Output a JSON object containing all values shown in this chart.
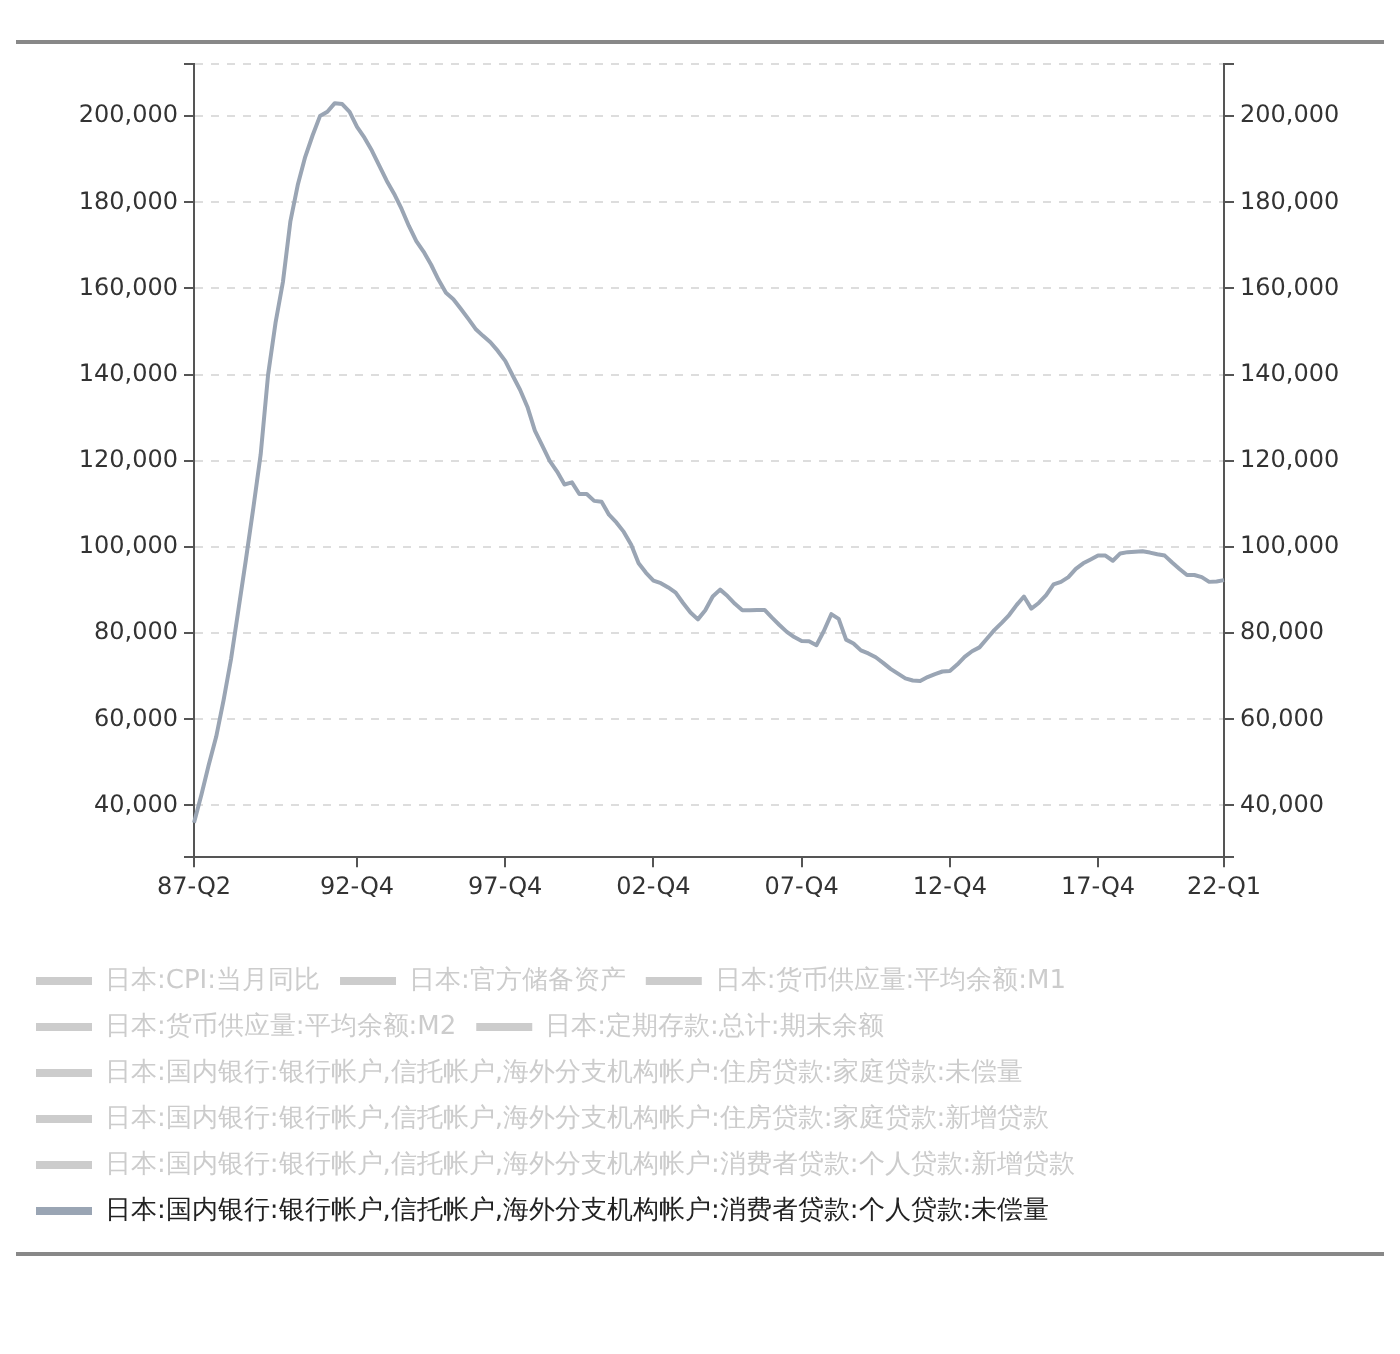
{
  "chart_data": {
    "type": "line",
    "categories": [
      "87-Q2",
      null,
      null,
      null,
      null,
      null,
      null,
      null,
      null,
      null,
      null,
      null,
      null,
      null,
      null,
      null,
      null,
      null,
      null,
      null,
      null,
      null,
      "92-Q4",
      null,
      null,
      null,
      null,
      null,
      null,
      null,
      null,
      null,
      null,
      null,
      null,
      null,
      null,
      null,
      null,
      null,
      null,
      null,
      "97-Q4",
      null,
      null,
      null,
      null,
      null,
      null,
      null,
      null,
      null,
      null,
      null,
      null,
      null,
      null,
      null,
      null,
      null,
      null,
      null,
      "02-Q4",
      null,
      null,
      null,
      null,
      null,
      null,
      null,
      null,
      null,
      null,
      null,
      null,
      null,
      null,
      null,
      null,
      null,
      null,
      null,
      "07-Q4",
      null,
      null,
      null,
      null,
      null,
      null,
      null,
      null,
      null,
      null,
      null,
      null,
      null,
      null,
      null,
      null,
      null,
      null,
      null,
      "12-Q4",
      null,
      null,
      null,
      null,
      null,
      null,
      null,
      null,
      null,
      null,
      null,
      null,
      null,
      null,
      null,
      null,
      null,
      null,
      null,
      "17-Q4",
      null,
      null,
      null,
      null,
      null,
      null,
      null,
      null,
      null,
      null,
      null,
      null,
      null,
      null,
      null,
      null,
      "22-Q1"
    ],
    "ylim": [
      28000,
      212000
    ],
    "yticks": [
      {
        "value": 40000,
        "label": "40,000"
      },
      {
        "value": 60000,
        "label": "60,000"
      },
      {
        "value": 80000,
        "label": "80,000"
      },
      {
        "value": 100000,
        "label": "100,000"
      },
      {
        "value": 120000,
        "label": "120,000"
      },
      {
        "value": 140000,
        "label": "140,000"
      },
      {
        "value": 160000,
        "label": "160,000"
      },
      {
        "value": 180000,
        "label": "180,000"
      },
      {
        "value": 200000,
        "label": "200,000"
      }
    ],
    "y2lim": [
      28000,
      212000
    ],
    "y2ticks": [
      {
        "value": 40000,
        "label": "40,000"
      },
      {
        "value": 60000,
        "label": "60,000"
      },
      {
        "value": 80000,
        "label": "80,000"
      },
      {
        "value": 100000,
        "label": "100,000"
      },
      {
        "value": 120000,
        "label": "120,000"
      },
      {
        "value": 140000,
        "label": "140,000"
      },
      {
        "value": 160000,
        "label": "160,000"
      },
      {
        "value": 180000,
        "label": "180,000"
      },
      {
        "value": 200000,
        "label": "200,000"
      }
    ],
    "grid": "y",
    "legend": "bottom",
    "marker": "none",
    "line_style": "solid",
    "series": [
      {
        "name": "日本:CPI:当月同比",
        "color": "#cccccc",
        "values": [
          null,
          null,
          null,
          null,
          null,
          null,
          null,
          null,
          null,
          null,
          null,
          null,
          null,
          null,
          null,
          null,
          null,
          null,
          null,
          null,
          null,
          null,
          null,
          null,
          null,
          null,
          null,
          null,
          null,
          null,
          null,
          null,
          null,
          null,
          null,
          null,
          null,
          null,
          null,
          null,
          null,
          null,
          null,
          null,
          null,
          null,
          null,
          null,
          null,
          null,
          null,
          null,
          null,
          null,
          null,
          null,
          null,
          null,
          null,
          null,
          null,
          null,
          null,
          null,
          null,
          null,
          null,
          null,
          null,
          null,
          null,
          null,
          null,
          null,
          null,
          null,
          null,
          null,
          null,
          null,
          null,
          null,
          null,
          null,
          null,
          null,
          null,
          null,
          null,
          null,
          null,
          null,
          null,
          null,
          null,
          null,
          null,
          null,
          null,
          null,
          null,
          null,
          null,
          null,
          null,
          null,
          null,
          null,
          null,
          null,
          null,
          null,
          null,
          null,
          null,
          null,
          null,
          null,
          null,
          null,
          null,
          null,
          null,
          null,
          null,
          null,
          null,
          null,
          null,
          null,
          null,
          null,
          null,
          null,
          null,
          null,
          null,
          null,
          null,
          null
        ]
      },
      {
        "name": "日本:官方储备资产",
        "color": "#cccccc",
        "values": [
          null,
          null,
          null,
          null,
          null,
          null,
          null,
          null,
          null,
          null,
          null,
          null,
          null,
          null,
          null,
          null,
          null,
          null,
          null,
          null,
          null,
          null,
          null,
          null,
          null,
          null,
          null,
          null,
          null,
          null,
          null,
          null,
          null,
          null,
          null,
          null,
          null,
          null,
          null,
          null,
          null,
          null,
          null,
          null,
          null,
          null,
          null,
          null,
          null,
          null,
          null,
          null,
          null,
          null,
          null,
          null,
          null,
          null,
          null,
          null,
          null,
          null,
          null,
          null,
          null,
          null,
          null,
          null,
          null,
          null,
          null,
          null,
          null,
          null,
          null,
          null,
          null,
          null,
          null,
          null,
          null,
          null,
          null,
          null,
          null,
          null,
          null,
          null,
          null,
          null,
          null,
          null,
          null,
          null,
          null,
          null,
          null,
          null,
          null,
          null,
          null,
          null,
          null,
          null,
          null,
          null,
          null,
          null,
          null,
          null,
          null,
          null,
          null,
          null,
          null,
          null,
          null,
          null,
          null,
          null,
          null,
          null,
          null,
          null,
          null,
          null,
          null,
          null,
          null,
          null,
          null,
          null,
          null,
          null,
          null,
          null,
          null,
          null,
          null,
          null
        ]
      },
      {
        "name": "日本:货币供应量:平均余额:M1",
        "color": "#cccccc",
        "values": [
          null,
          null,
          null,
          null,
          null,
          null,
          null,
          null,
          null,
          null,
          null,
          null,
          null,
          null,
          null,
          null,
          null,
          null,
          null,
          null,
          null,
          null,
          null,
          null,
          null,
          null,
          null,
          null,
          null,
          null,
          null,
          null,
          null,
          null,
          null,
          null,
          null,
          null,
          null,
          null,
          null,
          null,
          null,
          null,
          null,
          null,
          null,
          null,
          null,
          null,
          null,
          null,
          null,
          null,
          null,
          null,
          null,
          null,
          null,
          null,
          null,
          null,
          null,
          null,
          null,
          null,
          null,
          null,
          null,
          null,
          null,
          null,
          null,
          null,
          null,
          null,
          null,
          null,
          null,
          null,
          null,
          null,
          null,
          null,
          null,
          null,
          null,
          null,
          null,
          null,
          null,
          null,
          null,
          null,
          null,
          null,
          null,
          null,
          null,
          null,
          null,
          null,
          null,
          null,
          null,
          null,
          null,
          null,
          null,
          null,
          null,
          null,
          null,
          null,
          null,
          null,
          null,
          null,
          null,
          null,
          null,
          null,
          null,
          null,
          null,
          null,
          null,
          null,
          null,
          null,
          null,
          null,
          null,
          null,
          null,
          null,
          null,
          null,
          null,
          null
        ]
      },
      {
        "name": "日本:货币供应量:平均余额:M2",
        "color": "#cccccc",
        "values": [
          null,
          null,
          null,
          null,
          null,
          null,
          null,
          null,
          null,
          null,
          null,
          null,
          null,
          null,
          null,
          null,
          null,
          null,
          null,
          null,
          null,
          null,
          null,
          null,
          null,
          null,
          null,
          null,
          null,
          null,
          null,
          null,
          null,
          null,
          null,
          null,
          null,
          null,
          null,
          null,
          null,
          null,
          null,
          null,
          null,
          null,
          null,
          null,
          null,
          null,
          null,
          null,
          null,
          null,
          null,
          null,
          null,
          null,
          null,
          null,
          null,
          null,
          null,
          null,
          null,
          null,
          null,
          null,
          null,
          null,
          null,
          null,
          null,
          null,
          null,
          null,
          null,
          null,
          null,
          null,
          null,
          null,
          null,
          null,
          null,
          null,
          null,
          null,
          null,
          null,
          null,
          null,
          null,
          null,
          null,
          null,
          null,
          null,
          null,
          null,
          null,
          null,
          null,
          null,
          null,
          null,
          null,
          null,
          null,
          null,
          null,
          null,
          null,
          null,
          null,
          null,
          null,
          null,
          null,
          null,
          null,
          null,
          null,
          null,
          null,
          null,
          null,
          null,
          null,
          null,
          null,
          null,
          null,
          null,
          null,
          null,
          null,
          null,
          null,
          null
        ]
      },
      {
        "name": "日本:定期存款:总计:期末余额",
        "color": "#cccccc",
        "values": [
          null,
          null,
          null,
          null,
          null,
          null,
          null,
          null,
          null,
          null,
          null,
          null,
          null,
          null,
          null,
          null,
          null,
          null,
          null,
          null,
          null,
          null,
          null,
          null,
          null,
          null,
          null,
          null,
          null,
          null,
          null,
          null,
          null,
          null,
          null,
          null,
          null,
          null,
          null,
          null,
          null,
          null,
          null,
          null,
          null,
          null,
          null,
          null,
          null,
          null,
          null,
          null,
          null,
          null,
          null,
          null,
          null,
          null,
          null,
          null,
          null,
          null,
          null,
          null,
          null,
          null,
          null,
          null,
          null,
          null,
          null,
          null,
          null,
          null,
          null,
          null,
          null,
          null,
          null,
          null,
          null,
          null,
          null,
          null,
          null,
          null,
          null,
          null,
          null,
          null,
          null,
          null,
          null,
          null,
          null,
          null,
          null,
          null,
          null,
          null,
          null,
          null,
          null,
          null,
          null,
          null,
          null,
          null,
          null,
          null,
          null,
          null,
          null,
          null,
          null,
          null,
          null,
          null,
          null,
          null,
          null,
          null,
          null,
          null,
          null,
          null,
          null,
          null,
          null,
          null,
          null,
          null,
          null,
          null,
          null,
          null,
          null,
          null,
          null,
          null
        ]
      },
      {
        "name": "日本:国内银行:银行帐户,信托帐户,海外分支机构帐户:住房贷款:家庭贷款:未偿量",
        "color": "#cccccc",
        "values": [
          null,
          null,
          null,
          null,
          null,
          null,
          null,
          null,
          null,
          null,
          null,
          null,
          null,
          null,
          null,
          null,
          null,
          null,
          null,
          null,
          null,
          null,
          null,
          null,
          null,
          null,
          null,
          null,
          null,
          null,
          null,
          null,
          null,
          null,
          null,
          null,
          null,
          null,
          null,
          null,
          null,
          null,
          null,
          null,
          null,
          null,
          null,
          null,
          null,
          null,
          null,
          null,
          null,
          null,
          null,
          null,
          null,
          null,
          null,
          null,
          null,
          null,
          null,
          null,
          null,
          null,
          null,
          null,
          null,
          null,
          null,
          null,
          null,
          null,
          null,
          null,
          null,
          null,
          null,
          null,
          null,
          null,
          null,
          null,
          null,
          null,
          null,
          null,
          null,
          null,
          null,
          null,
          null,
          null,
          null,
          null,
          null,
          null,
          null,
          null,
          null,
          null,
          null,
          null,
          null,
          null,
          null,
          null,
          null,
          null,
          null,
          null,
          null,
          null,
          null,
          null,
          null,
          null,
          null,
          null,
          null,
          null,
          null,
          null,
          null,
          null,
          null,
          null,
          null,
          null,
          null,
          null,
          null,
          null,
          null,
          null,
          null,
          null,
          null,
          null
        ]
      },
      {
        "name": "日本:国内银行:银行帐户,信托帐户,海外分支机构帐户:住房贷款:家庭贷款:新增贷款",
        "color": "#cccccc",
        "values": [
          null,
          null,
          null,
          null,
          null,
          null,
          null,
          null,
          null,
          null,
          null,
          null,
          null,
          null,
          null,
          null,
          null,
          null,
          null,
          null,
          null,
          null,
          null,
          null,
          null,
          null,
          null,
          null,
          null,
          null,
          null,
          null,
          null,
          null,
          null,
          null,
          null,
          null,
          null,
          null,
          null,
          null,
          null,
          null,
          null,
          null,
          null,
          null,
          null,
          null,
          null,
          null,
          null,
          null,
          null,
          null,
          null,
          null,
          null,
          null,
          null,
          null,
          null,
          null,
          null,
          null,
          null,
          null,
          null,
          null,
          null,
          null,
          null,
          null,
          null,
          null,
          null,
          null,
          null,
          null,
          null,
          null,
          null,
          null,
          null,
          null,
          null,
          null,
          null,
          null,
          null,
          null,
          null,
          null,
          null,
          null,
          null,
          null,
          null,
          null,
          null,
          null,
          null,
          null,
          null,
          null,
          null,
          null,
          null,
          null,
          null,
          null,
          null,
          null,
          null,
          null,
          null,
          null,
          null,
          null,
          null,
          null,
          null,
          null,
          null,
          null,
          null,
          null,
          null,
          null,
          null,
          null,
          null,
          null,
          null,
          null,
          null,
          null,
          null,
          null
        ]
      },
      {
        "name": "日本:国内银行:银行帐户,信托帐户,海外分支机构帐户:消费者贷款:个人贷款:新增贷款",
        "color": "#cccccc",
        "values": [
          null,
          null,
          null,
          null,
          null,
          null,
          null,
          null,
          null,
          null,
          null,
          null,
          null,
          null,
          null,
          null,
          null,
          null,
          null,
          null,
          null,
          null,
          null,
          null,
          null,
          null,
          null,
          null,
          null,
          null,
          null,
          null,
          null,
          null,
          null,
          null,
          null,
          null,
          null,
          null,
          null,
          null,
          null,
          null,
          null,
          null,
          null,
          null,
          null,
          null,
          null,
          null,
          null,
          null,
          null,
          null,
          null,
          null,
          null,
          null,
          null,
          null,
          null,
          null,
          null,
          null,
          null,
          null,
          null,
          null,
          null,
          null,
          null,
          null,
          null,
          null,
          null,
          null,
          null,
          null,
          null,
          null,
          null,
          null,
          null,
          null,
          null,
          null,
          null,
          null,
          null,
          null,
          null,
          null,
          null,
          null,
          null,
          null,
          null,
          null,
          null,
          null,
          null,
          null,
          null,
          null,
          null,
          null,
          null,
          null,
          null,
          null,
          null,
          null,
          null,
          null,
          null,
          null,
          null,
          null,
          null,
          null,
          null,
          null,
          null,
          null,
          null,
          null,
          null,
          null,
          null,
          null,
          null,
          null,
          null,
          null,
          null,
          null,
          null,
          null
        ]
      },
      {
        "name": "日本:国内银行:银行帐户,信托帐户,海外分支机构帐户:消费者贷款:个人贷款:未偿量",
        "color": "#9aa5b4",
        "values": [
          36000,
          42500,
          49500,
          56000,
          64500,
          74000,
          85500,
          97000,
          109000,
          121500,
          140000,
          152000,
          161500,
          175500,
          184000,
          190500,
          195500,
          200000,
          201000,
          203000,
          202800,
          201000,
          197500,
          195000,
          192000,
          188500,
          185000,
          182000,
          178500,
          174500,
          171000,
          168500,
          165500,
          162000,
          159000,
          157500,
          155300,
          153000,
          150600,
          149000,
          147500,
          145500,
          143200,
          139800,
          136500,
          132500,
          127000,
          123500,
          120000,
          117500,
          114500,
          115000,
          112300,
          112300,
          110700,
          110500,
          107500,
          105700,
          103500,
          100500,
          96200,
          94000,
          92200,
          91600,
          90600,
          89400,
          87000,
          84800,
          83200,
          85300,
          88500,
          90100,
          88600,
          86800,
          85300,
          85300,
          85400,
          85400,
          83600,
          81900,
          80300,
          79100,
          78200,
          78100,
          77200,
          80500,
          84400,
          83300,
          78500,
          77600,
          76000,
          75300,
          74400,
          73100,
          71700,
          70600,
          69500,
          69000,
          68900,
          69800,
          70500,
          71100,
          71200,
          72700,
          74500,
          75800,
          76700,
          78700,
          80700,
          82400,
          84200,
          86500,
          88500,
          85700,
          87000,
          88800,
          91300,
          91900,
          93000,
          94900,
          96200,
          97100,
          98000,
          98000,
          96800,
          98500,
          98800,
          98900,
          99000,
          98700,
          98300,
          98000,
          96400,
          94900,
          93500,
          93500,
          93000,
          91900,
          92000,
          92300
        ]
      }
    ]
  }
}
